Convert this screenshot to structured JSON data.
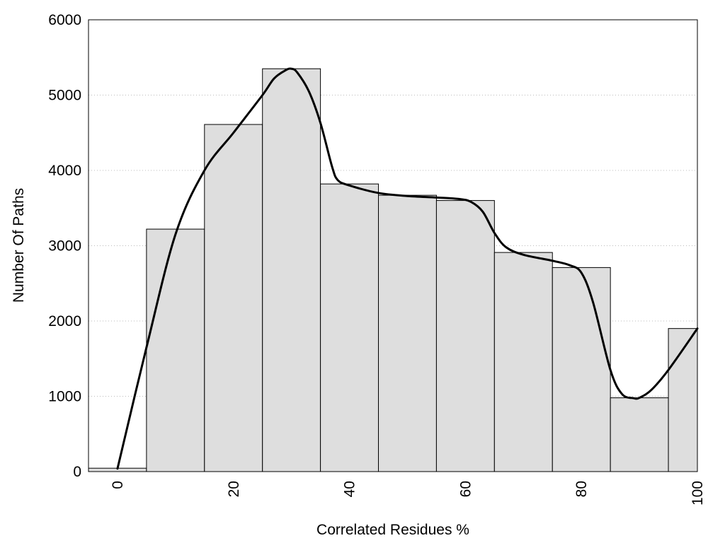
{
  "chart_data": {
    "type": "bar",
    "title": "",
    "xlabel": "Correlated Residues %",
    "ylabel": "Number Of Paths",
    "xlim": [
      -5,
      100
    ],
    "ylim": [
      0,
      6000
    ],
    "x_ticks": [
      0,
      20,
      40,
      60,
      80,
      100
    ],
    "y_ticks": [
      0,
      1000,
      2000,
      3000,
      4000,
      5000,
      6000
    ],
    "grid": "horizontal dotted",
    "bin_width": 10,
    "bins": [
      {
        "center": 0,
        "value": 45
      },
      {
        "center": 10,
        "value": 3220
      },
      {
        "center": 20,
        "value": 4610
      },
      {
        "center": 30,
        "value": 5350
      },
      {
        "center": 40,
        "value": 3820
      },
      {
        "center": 50,
        "value": 3670
      },
      {
        "center": 60,
        "value": 3600
      },
      {
        "center": 70,
        "value": 2910
      },
      {
        "center": 80,
        "value": 2710
      },
      {
        "center": 90,
        "value": 980
      },
      {
        "center": 100,
        "value": 1900
      }
    ],
    "curve": {
      "x": [
        0,
        5,
        10,
        15,
        20,
        25,
        27,
        29,
        30,
        31,
        33,
        35,
        37,
        38,
        40,
        45,
        50,
        55,
        59,
        61,
        63,
        65,
        67,
        70,
        75,
        78,
        80,
        82,
        85,
        87,
        89,
        90,
        92,
        95,
        100
      ],
      "y": [
        40,
        1650,
        3150,
        4000,
        4500,
        5000,
        5220,
        5330,
        5350,
        5300,
        5050,
        4630,
        4050,
        3870,
        3800,
        3700,
        3660,
        3640,
        3620,
        3580,
        3450,
        3170,
        2980,
        2880,
        2800,
        2740,
        2640,
        2250,
        1350,
        1030,
        975,
        980,
        1080,
        1350,
        1900
      ]
    },
    "colors": {
      "bar_fill": "#dedede",
      "bar_stroke": "#000000",
      "curve": "#000000",
      "grid": "#bbbbbb"
    }
  }
}
